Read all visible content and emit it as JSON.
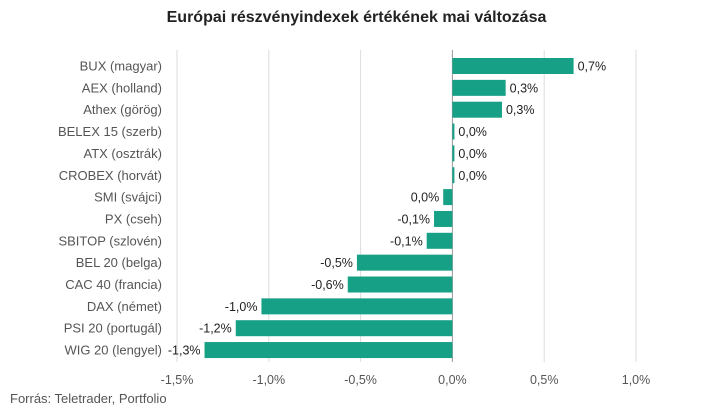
{
  "chart_data": {
    "type": "bar",
    "orientation": "horizontal",
    "title": "Európai részvényindexek értékének mai változása",
    "source": "Forrás: Teletrader, Portfolio",
    "categories": [
      "BUX (magyar)",
      "AEX (holland)",
      "Athex (görög)",
      "BELEX 15 (szerb)",
      "ATX (osztrák)",
      "CROBEX (horvát)",
      "SMI (svájci)",
      "PX (cseh)",
      "SBITOP (szlovén)",
      "BEL 20 (belga)",
      "CAC 40 (francia)",
      "DAX (német)",
      "PSI 20 (portugál)",
      "WIG 20 (lengyel)"
    ],
    "values": [
      0.66,
      0.29,
      0.27,
      0.01,
      0.01,
      0.01,
      -0.05,
      -0.1,
      -0.14,
      -0.52,
      -0.57,
      -1.04,
      -1.18,
      -1.35
    ],
    "value_labels": [
      "0,7%",
      "0,3%",
      "0,3%",
      "0,0%",
      "0,0%",
      "0,0%",
      "0,0%",
      "-0,1%",
      "-0,1%",
      "-0,5%",
      "-0,6%",
      "-1,0%",
      "-1,2%",
      "-1,3%"
    ],
    "xlim": [
      -1.5,
      1.0
    ],
    "x_ticks": [
      -1.5,
      -1.0,
      -0.5,
      0.0,
      0.5,
      1.0
    ],
    "x_tick_labels": [
      "-1,5%",
      "-1,0%",
      "-0,5%",
      "0,0%",
      "0,5%",
      "1,0%"
    ],
    "grid": "vertical",
    "bar_color": "#16a085",
    "grid_color": "#dddddd",
    "zero_line_color": "#999999"
  }
}
